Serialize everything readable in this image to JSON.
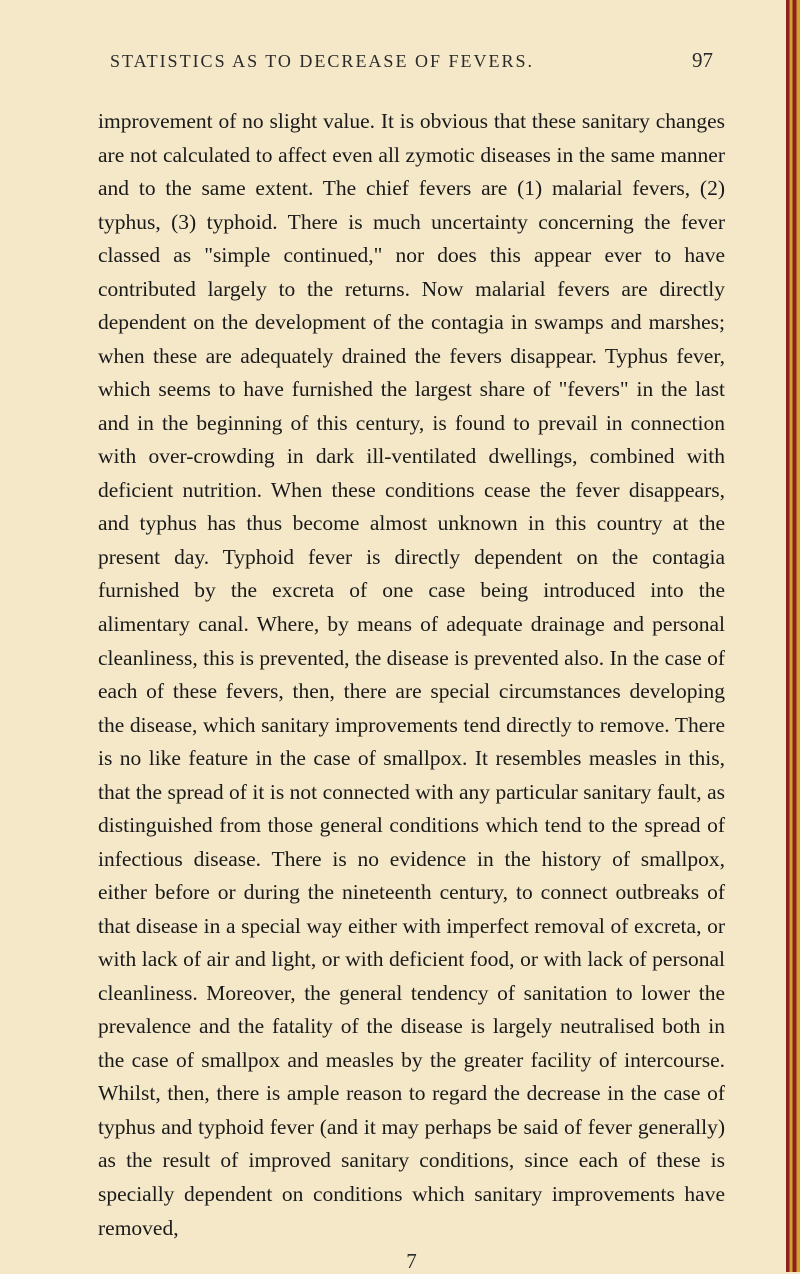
{
  "header": {
    "title": "STATISTICS AS TO DECREASE OF FEVERS.",
    "page_number": "97"
  },
  "body": {
    "paragraph": "improvement of no slight value. It is obvious that these sanitary changes are not calculated to affect even all zymotic diseases in the same manner and to the same extent. The chief fevers are (1) malarial fevers, (2) typhus, (3) typhoid. There is much uncertainty concerning the fever classed as \"simple continued,\" nor does this appear ever to have contributed largely to the returns. Now malarial fevers are directly dependent on the development of the contagia in swamps and marshes; when these are adequately drained the fevers disappear. Typhus fever, which seems to have furnished the largest share of \"fevers\" in the last and in the beginning of this century, is found to prevail in connection with over-crowding in dark ill-ventilated dwellings, combined with deficient nutrition. When these conditions cease the fever disappears, and typhus has thus become almost unknown in this country at the present day. Typhoid fever is directly dependent on the contagia furnished by the excreta of one case being introduced into the alimentary canal. Where, by means of adequate drainage and personal cleanliness, this is prevented, the disease is prevented also. In the case of each of these fevers, then, there are special circumstances developing the disease, which sanitary improvements tend directly to remove. There is no like feature in the case of smallpox. It resembles measles in this, that the spread of it is not connected with any particular sanitary fault, as distinguished from those general conditions which tend to the spread of infectious disease. There is no evidence in the history of smallpox, either before or during the nineteenth century, to connect outbreaks of that disease in a special way either with imperfect removal of excreta, or with lack of air and light, or with deficient food, or with lack of personal cleanliness. Moreover, the general tendency of sanitation to lower the prevalence and the fatality of the disease is largely neutralised both in the case of smallpox and measles by the greater facility of intercourse. Whilst, then, there is ample reason to regard the decrease in the case of typhus and typhoid fever (and it may perhaps be said of fever generally) as the result of improved sanitary conditions, since each of these is specially dependent on conditions which sanitary improvements have removed,"
  },
  "footer": {
    "number": "7"
  },
  "styling": {
    "page_bg": "#f5e8c8",
    "text_color": "#1a1a1a",
    "header_color": "#2a2a2a",
    "body_fontsize": 21.5,
    "header_fontsize": 18,
    "page_num_fontsize": 21,
    "line_height": 1.56,
    "border_red": "#8b2020",
    "border_gold": "#d4a030"
  }
}
